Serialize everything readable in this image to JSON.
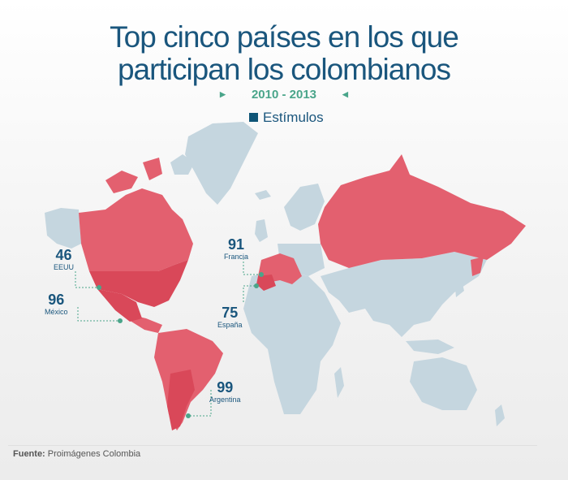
{
  "title": {
    "line1": "Top cinco países en los que",
    "line2": "participan los colombianos"
  },
  "period": "2010 - 2013",
  "legend": {
    "label": "Estímulos",
    "color": "#0f5577"
  },
  "colors": {
    "highlight": "#e3606f",
    "highlight_strong": "#d94859",
    "land": "#c5d6df",
    "callout_dot": "#4aa58a",
    "text": "#1a567d"
  },
  "callouts": [
    {
      "country": "EEUU",
      "value": "46"
    },
    {
      "country": "México",
      "value": "96"
    },
    {
      "country": "Francia",
      "value": "91"
    },
    {
      "country": "España",
      "value": "75"
    },
    {
      "country": "Argentina",
      "value": "99"
    }
  ],
  "source": {
    "prefix": "Fuente:",
    "text": "Proimágenes Colombia"
  }
}
